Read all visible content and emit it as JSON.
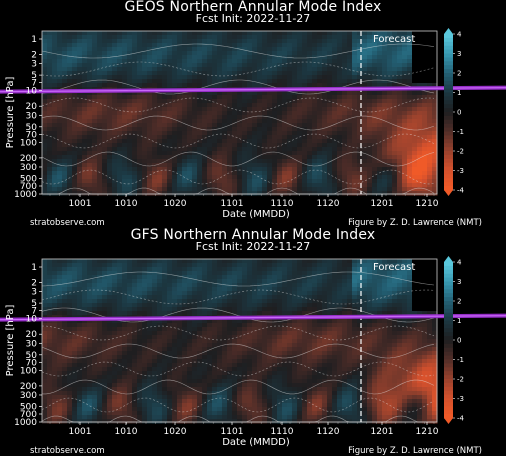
{
  "colors": {
    "negative_strong": "#e8552a",
    "negative_weak": "#5a3a30",
    "positive_strong": "#3aa0b8",
    "positive_weak": "#1f3f4a",
    "background": "#000000",
    "highlight_line": "#9b30d0"
  },
  "chart_data": [
    {
      "type": "heatmap",
      "title": "GEOS Northern Annular Mode Index",
      "subtitle": "Fcst Init: 2022-11-27",
      "xlabel": "Date (MMDD)",
      "ylabel": "Pressure [hPa]",
      "x_ticks": [
        "1001",
        "1010",
        "1020",
        "1101",
        "1110",
        "1120",
        "1201",
        "1210"
      ],
      "y_ticks": [
        "1",
        "2",
        "3",
        "5",
        "7",
        "10",
        "20",
        "30",
        "50",
        "70",
        "100",
        "200",
        "300",
        "500",
        "700",
        "1000"
      ],
      "forecast_label": "Forecast",
      "forecast_start": "1127",
      "highlight_level_hpa": 10,
      "colorbar_ticks": [
        "4",
        "3",
        "2",
        "1",
        "0",
        "-1",
        "-2",
        "-3",
        "-4"
      ],
      "clim": [
        -4,
        4
      ],
      "source": "stratobserve.com",
      "credit": "Figure by Z. D. Lawrence (NMT)"
    },
    {
      "type": "heatmap",
      "title": "GFS Northern Annular Mode Index",
      "subtitle": "Fcst Init: 2022-11-27",
      "xlabel": "Date (MMDD)",
      "ylabel": "Pressure [hPa]",
      "x_ticks": [
        "1001",
        "1010",
        "1020",
        "1101",
        "1110",
        "1120",
        "1201",
        "1210"
      ],
      "y_ticks": [
        "1",
        "2",
        "3",
        "5",
        "7",
        "10",
        "20",
        "30",
        "50",
        "70",
        "100",
        "200",
        "300",
        "500",
        "700",
        "1000"
      ],
      "forecast_label": "Forecast",
      "forecast_start": "1127",
      "highlight_level_hpa": 10,
      "colorbar_ticks": [
        "4",
        "3",
        "2",
        "1",
        "0",
        "-1",
        "-2",
        "-3",
        "-4"
      ],
      "clim": [
        -4,
        4
      ],
      "source": "stratobserve.com",
      "credit": "Figure by Z. D. Lawrence (NMT)"
    }
  ]
}
